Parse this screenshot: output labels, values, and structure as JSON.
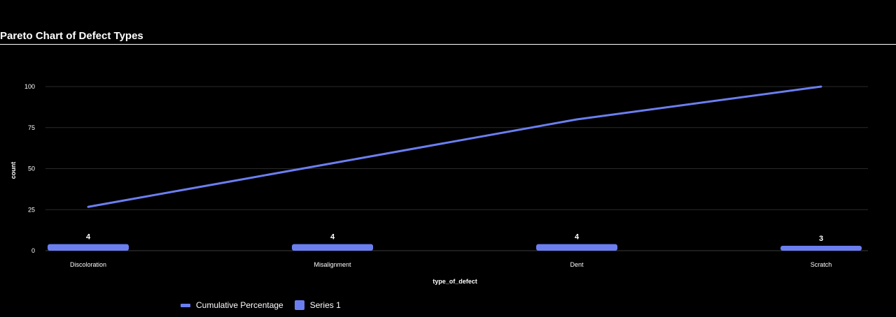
{
  "title": "Pareto Chart of Defect Types",
  "colors": {
    "bar": "#6b7ef0",
    "line": "#6b7ef0",
    "grid": "#2a2a2a",
    "background": "#000000"
  },
  "legend": {
    "items": [
      {
        "label": "Cumulative Percentage",
        "shape": "line"
      },
      {
        "label": "Series 1",
        "shape": "square"
      }
    ]
  },
  "chart_data": {
    "type": "bar",
    "title": "Pareto Chart of Defect Types",
    "xlabel": "type_of_defect",
    "ylabel": "count",
    "categories": [
      "Discoloration",
      "Misalignment",
      "Dent",
      "Scratch"
    ],
    "ylim": [
      0,
      100
    ],
    "yticks": [
      0,
      25,
      50,
      75,
      100
    ],
    "grid": true,
    "legend_position": "bottom",
    "series": [
      {
        "name": "Series 1",
        "type": "bar",
        "values": [
          4,
          4,
          4,
          3
        ]
      },
      {
        "name": "Cumulative Percentage",
        "type": "line",
        "values": [
          26.7,
          53.3,
          80,
          100
        ]
      }
    ]
  }
}
